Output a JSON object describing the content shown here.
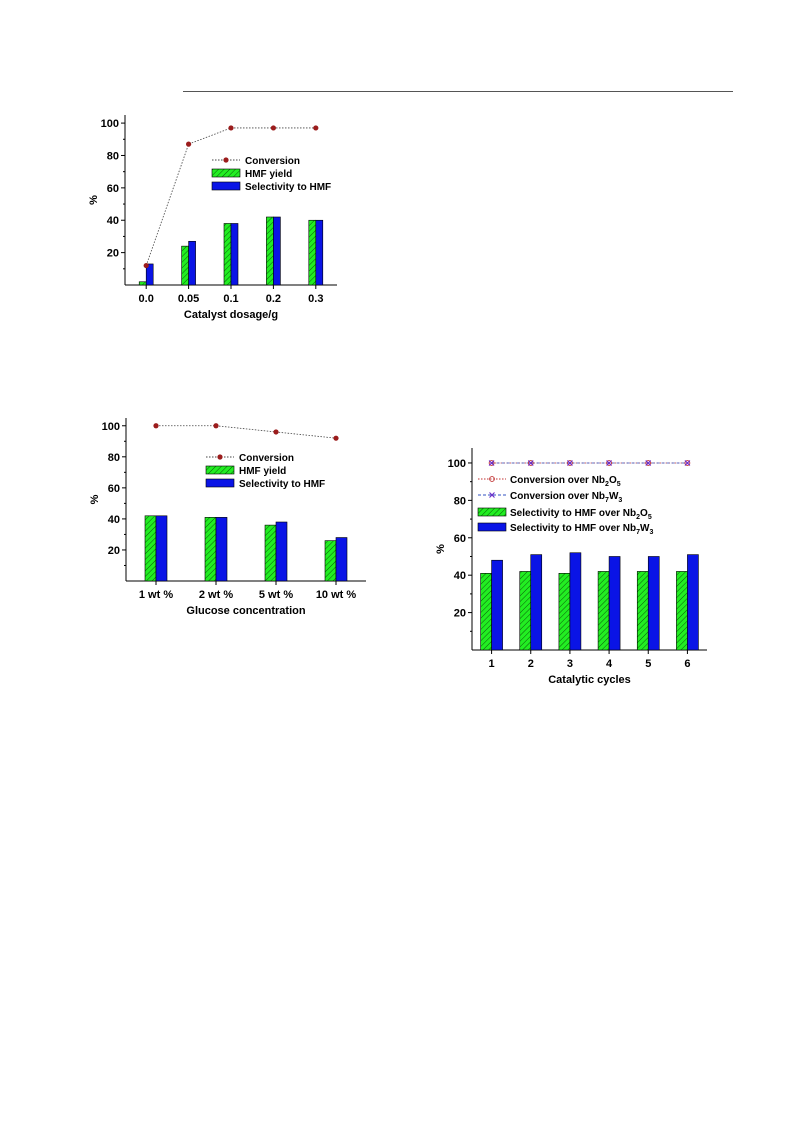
{
  "colors": {
    "hmf_yield": "#22ee22",
    "selectivity": "#0a14e6",
    "conversion": "#9b1c1c",
    "conv_nb7w3": "#6a28c8"
  },
  "chart_data": [
    {
      "type": "bar",
      "title": "",
      "xlabel": "Catalyst dosage/g",
      "ylabel": "%",
      "ylim": [
        0,
        105
      ],
      "yticks": [
        "20",
        "40",
        "60",
        "80",
        "100"
      ],
      "categories": [
        "0.0",
        "0.05",
        "0.1",
        "0.2",
        "0.3"
      ],
      "legend_position": "center",
      "series": [
        {
          "name": "Conversion",
          "kind": "line",
          "values": [
            12,
            87,
            97,
            97,
            97
          ]
        },
        {
          "name": "HMF yield",
          "kind": "bar",
          "values": [
            2,
            24,
            38,
            42,
            40
          ]
        },
        {
          "name": "Selectivity to HMF",
          "kind": "bar",
          "values": [
            13,
            27,
            38,
            42,
            40
          ]
        }
      ]
    },
    {
      "type": "bar",
      "title": "",
      "xlabel": "Glucose concentration",
      "ylabel": "%",
      "ylim": [
        0,
        105
      ],
      "yticks": [
        "20",
        "40",
        "60",
        "80",
        "100"
      ],
      "categories": [
        "1 wt %",
        "2 wt %",
        "5 wt %",
        "10 wt %"
      ],
      "legend_position": "center-right",
      "series": [
        {
          "name": "Conversion",
          "kind": "line",
          "values": [
            100,
            100,
            96,
            92
          ]
        },
        {
          "name": "HMF yield",
          "kind": "bar",
          "values": [
            42,
            41,
            36,
            26
          ]
        },
        {
          "name": "Selectivity to HMF",
          "kind": "bar",
          "values": [
            42,
            41,
            38,
            28
          ]
        }
      ]
    },
    {
      "type": "bar",
      "title": "",
      "xlabel": "Catalytic cycles",
      "ylabel": "%",
      "ylim": [
        0,
        108
      ],
      "yticks": [
        "20",
        "40",
        "60",
        "80",
        "100"
      ],
      "categories": [
        "1",
        "2",
        "3",
        "4",
        "5",
        "6"
      ],
      "legend_position": "top-left",
      "series": [
        {
          "name": "Conversion over Nb2O5",
          "label_base": "Conversion over Nb",
          "label_parts": [
            "2",
            "O",
            "5"
          ],
          "kind": "line",
          "values": [
            100,
            100,
            100,
            100,
            100,
            100
          ]
        },
        {
          "name": "Conversion over Nb7W3",
          "label_base": "Conversion over Nb",
          "label_parts": [
            "7",
            "W",
            "3"
          ],
          "kind": "line",
          "values": [
            100,
            100,
            100,
            100,
            100,
            100
          ]
        },
        {
          "name": "Selectivity to HMF over Nb2O5",
          "label_base": "Selectivity to HMF over Nb",
          "label_parts": [
            "2",
            "O",
            "5"
          ],
          "kind": "bar",
          "values": [
            41,
            42,
            41,
            42,
            42,
            42
          ]
        },
        {
          "name": "Selectivity to HMF over Nb7W3",
          "label_base": "Selectivity to HMF over Nb",
          "label_parts": [
            "7",
            "W",
            "3"
          ],
          "kind": "bar",
          "values": [
            48,
            51,
            52,
            50,
            50,
            51
          ]
        }
      ]
    }
  ]
}
